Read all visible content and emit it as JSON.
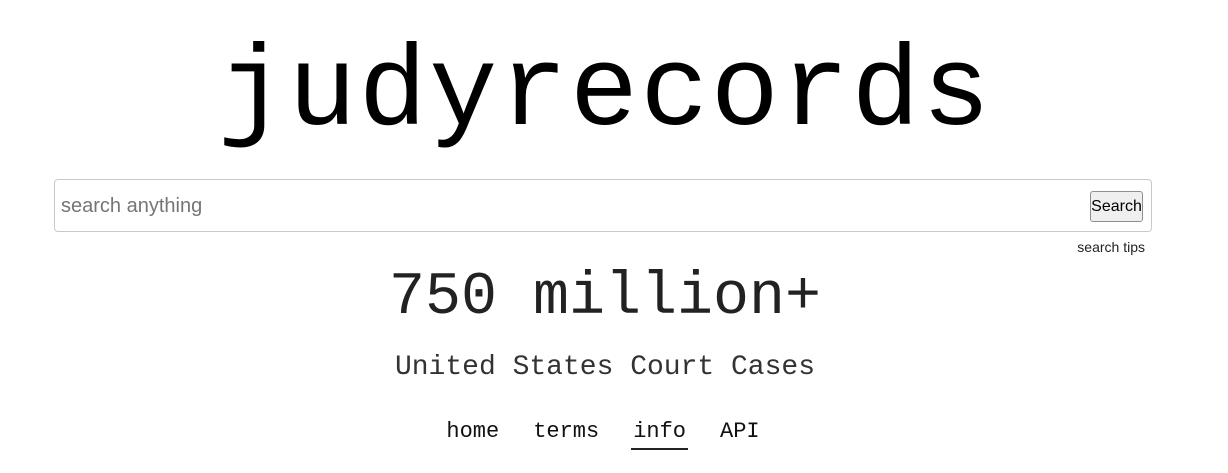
{
  "site": {
    "logo_text": "judyrecords"
  },
  "search": {
    "placeholder": "search anything",
    "value": "",
    "button_label": "Search",
    "tips_label": "search tips"
  },
  "stats": {
    "count_text": "750 million+",
    "subtitle": "United States Court Cases"
  },
  "nav": {
    "items": [
      {
        "label": "home",
        "active": false
      },
      {
        "label": "terms",
        "active": false
      },
      {
        "label": "info",
        "active": true
      },
      {
        "label": "API",
        "active": false
      }
    ]
  }
}
